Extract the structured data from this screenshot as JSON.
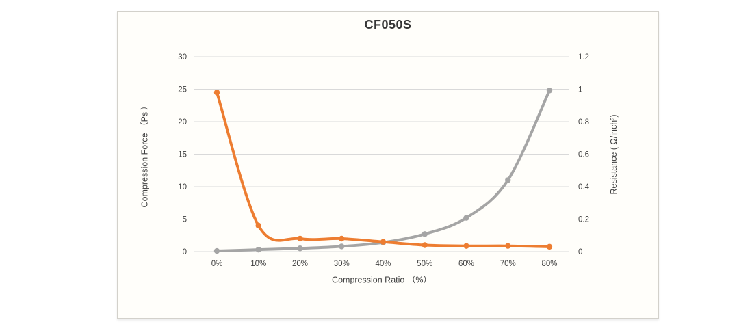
{
  "window": {
    "background": "#ffffff"
  },
  "chart": {
    "frame_border_color": "#d3d1cb",
    "frame_background": "#fffefa"
  },
  "chart_data": {
    "type": "line",
    "title": "CF050S",
    "xlabel": "Compression Ratio （%）",
    "ylabel_left": "Compression Force （Psi）",
    "ylabel_right": "Resistance ( Ω/inch³)",
    "categories": [
      "0%",
      "10%",
      "20%",
      "30%",
      "40%",
      "50%",
      "60%",
      "70%",
      "80%"
    ],
    "left_axis": {
      "min": 0,
      "max": 30,
      "ticks": [
        "0",
        "5",
        "10",
        "15",
        "20",
        "25",
        "30"
      ]
    },
    "right_axis": {
      "min": 0,
      "max": 1.2,
      "ticks": [
        "0",
        "0.2",
        "0.4",
        "0.6",
        "0.8",
        "1",
        "1.2"
      ]
    },
    "grid": true,
    "grid_color": "#d9d9d9",
    "legend": "none",
    "text_color": "#404040",
    "series": [
      {
        "name": "Compression Force (Psi)",
        "axis": "left",
        "color": "#a5a5a5",
        "values": [
          0.1,
          0.3,
          0.5,
          0.8,
          1.4,
          2.7,
          5.2,
          11,
          24.8
        ]
      },
      {
        "name": "Resistance (Ω/inch³)",
        "axis": "right",
        "color": "#ed7d31",
        "values": [
          0.98,
          0.16,
          0.08,
          0.08,
          0.06,
          0.04,
          0.035,
          0.035,
          0.03
        ]
      }
    ]
  }
}
